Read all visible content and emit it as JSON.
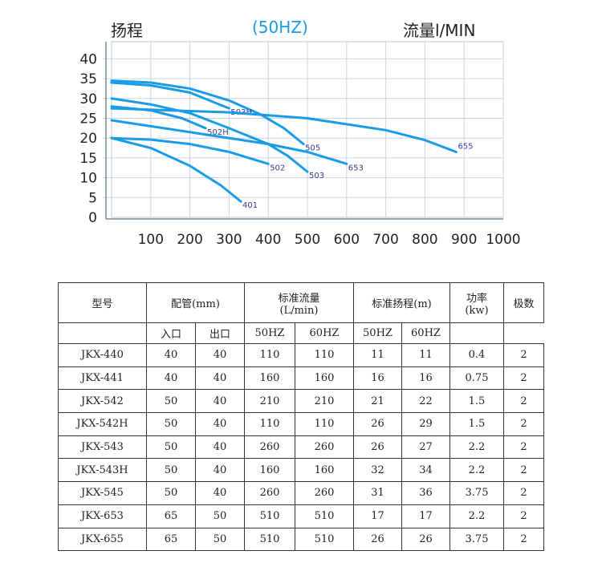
{
  "chart_data": {
    "type": "line",
    "title": "(50HZ)",
    "ylabel": "扬程",
    "xlabel": "流量l/MIN",
    "xlim": [
      0,
      1000
    ],
    "ylim": [
      0,
      40
    ],
    "xticks": [
      100,
      200,
      300,
      400,
      500,
      600,
      700,
      800,
      900,
      1000
    ],
    "yticks": [
      0,
      5,
      10,
      15,
      20,
      25,
      30,
      35,
      40
    ],
    "grid": true,
    "line_color": "#1a9be6",
    "series": [
      {
        "name": "505",
        "points": [
          [
            0,
            34.5
          ],
          [
            100,
            34
          ],
          [
            200,
            32.5
          ],
          [
            300,
            29.5
          ],
          [
            380,
            26
          ],
          [
            440,
            22.5
          ],
          [
            490,
            18.5
          ]
        ]
      },
      {
        "name": "503H",
        "points": [
          [
            0,
            34
          ],
          [
            100,
            33.3
          ],
          [
            200,
            31.5
          ],
          [
            300,
            27.5
          ]
        ]
      },
      {
        "name": "503",
        "points": [
          [
            0,
            30
          ],
          [
            100,
            28.5
          ],
          [
            200,
            26.3
          ],
          [
            300,
            22.5
          ],
          [
            400,
            18.5
          ],
          [
            450,
            15.5
          ],
          [
            500,
            11.5
          ]
        ]
      },
      {
        "name": "502H",
        "points": [
          [
            0,
            28
          ],
          [
            100,
            27
          ],
          [
            180,
            25
          ],
          [
            240,
            22.5
          ]
        ]
      },
      {
        "name": "655",
        "points": [
          [
            0,
            27.5
          ],
          [
            300,
            26.5
          ],
          [
            500,
            25
          ],
          [
            600,
            23.5
          ],
          [
            700,
            22
          ],
          [
            800,
            19.5
          ],
          [
            880,
            16.5
          ]
        ]
      },
      {
        "name": "653",
        "points": [
          [
            0,
            24.5
          ],
          [
            200,
            21.5
          ],
          [
            400,
            18.5
          ],
          [
            500,
            16.5
          ],
          [
            600,
            13.5
          ]
        ]
      },
      {
        "name": "502",
        "points": [
          [
            0,
            20
          ],
          [
            100,
            19.6
          ],
          [
            200,
            18.5
          ],
          [
            300,
            16.5
          ],
          [
            400,
            13.5
          ]
        ]
      },
      {
        "name": "401",
        "points": [
          [
            0,
            20
          ],
          [
            100,
            17.5
          ],
          [
            200,
            13
          ],
          [
            280,
            8
          ],
          [
            330,
            4
          ]
        ]
      }
    ]
  },
  "table": {
    "header": [
      "型号",
      "配管(mm)",
      "标准流量\n(L/min)",
      "标准扬程(m)",
      "功率\n(kw)",
      "极数"
    ],
    "subheader": [
      "",
      "入口",
      "出口",
      "50HZ",
      "60HZ",
      "50HZ",
      "60HZ",
      ""
    ],
    "rows": [
      [
        "JKX-440",
        "40",
        "40",
        "110",
        "110",
        "11",
        "11",
        "0.4",
        "2"
      ],
      [
        "JKX-441",
        "40",
        "40",
        "160",
        "160",
        "16",
        "16",
        "0.75",
        "2"
      ],
      [
        "JKX-542",
        "50",
        "40",
        "210",
        "210",
        "21",
        "22",
        "1.5",
        "2"
      ],
      [
        "JKX-542H",
        "50",
        "40",
        "110",
        "110",
        "26",
        "29",
        "1.5",
        "2"
      ],
      [
        "JKX-543",
        "50",
        "40",
        "260",
        "260",
        "26",
        "27",
        "2.2",
        "2"
      ],
      [
        "JKX-543H",
        "50",
        "40",
        "160",
        "160",
        "32",
        "34",
        "2.2",
        "2"
      ],
      [
        "JKX-545",
        "50",
        "40",
        "260",
        "260",
        "31",
        "36",
        "3.75",
        "2"
      ],
      [
        "JKX-653",
        "65",
        "50",
        "510",
        "510",
        "17",
        "17",
        "2.2",
        "2"
      ],
      [
        "JKX-655",
        "65",
        "50",
        "510",
        "510",
        "26",
        "26",
        "3.75",
        "2"
      ]
    ]
  }
}
